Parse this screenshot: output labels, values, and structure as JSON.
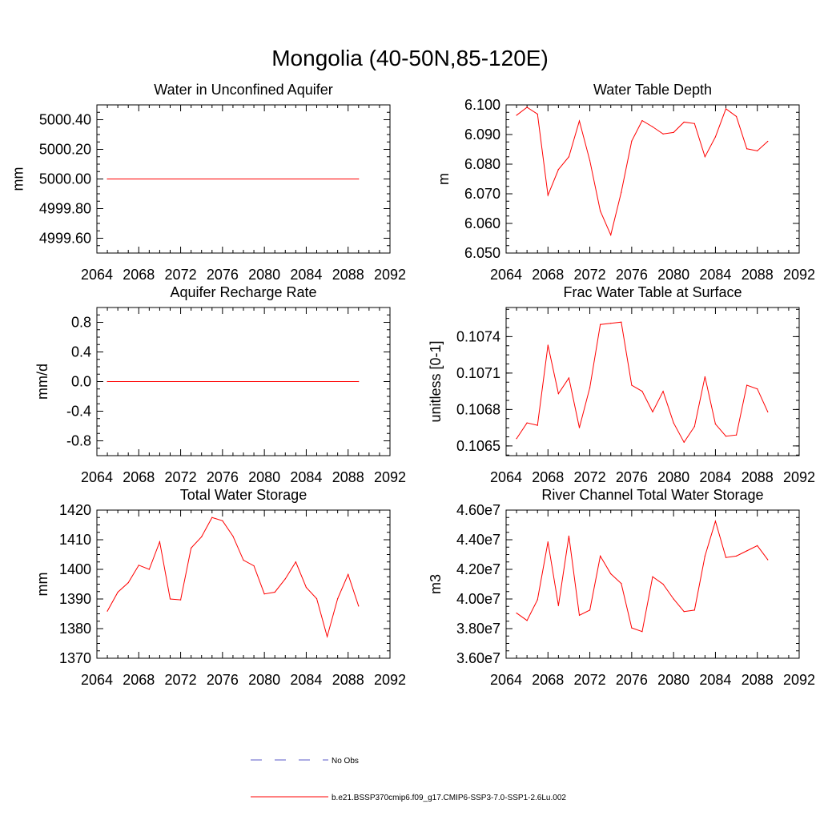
{
  "figure": {
    "title": "Mongolia (40-50N,85-120E)",
    "legend": [
      {
        "label": "No Obs",
        "color": "#5a5ac8",
        "dash": true
      },
      {
        "label": "b.e21.BSSP370cmip6.f09_g17.CMIP6-SSP3-7.0-SSP1-2.6Lu.002",
        "color": "#ff0000",
        "dash": false
      }
    ]
  },
  "chart_data": [
    {
      "type": "line",
      "title": "Water in Unconfined Aquifer",
      "xlabel": "",
      "ylabel": "mm",
      "xlim": [
        2064,
        2092
      ],
      "ylim": [
        4999.5,
        5000.5
      ],
      "xticks": [
        "2064",
        "2068",
        "2072",
        "2076",
        "2080",
        "2084",
        "2088",
        "2092"
      ],
      "yticks": [
        {
          "v": 4999.6,
          "label": "4999.60"
        },
        {
          "v": 4999.8,
          "label": "4999.80"
        },
        {
          "v": 5000.0,
          "label": "5000.00"
        },
        {
          "v": 5000.2,
          "label": "5000.20"
        },
        {
          "v": 5000.4,
          "label": "5000.40"
        }
      ],
      "x": [
        2065,
        2089
      ],
      "series": [
        {
          "color": "#ff0000",
          "values": [
            5000.0,
            5000.0
          ]
        }
      ]
    },
    {
      "type": "line",
      "title": "Water Table Depth",
      "xlabel": "",
      "ylabel": "m",
      "xlim": [
        2064,
        2092
      ],
      "ylim": [
        6.05,
        6.1
      ],
      "xticks": [
        "2064",
        "2068",
        "2072",
        "2076",
        "2080",
        "2084",
        "2088",
        "2092"
      ],
      "yticks": [
        {
          "v": 6.05,
          "label": "6.050"
        },
        {
          "v": 6.06,
          "label": "6.060"
        },
        {
          "v": 6.07,
          "label": "6.070"
        },
        {
          "v": 6.08,
          "label": "6.080"
        },
        {
          "v": 6.09,
          "label": "6.090"
        },
        {
          "v": 6.1,
          "label": "6.100"
        }
      ],
      "x": [
        2065,
        2066,
        2067,
        2068,
        2069,
        2070,
        2071,
        2072,
        2073,
        2074,
        2075,
        2076,
        2077,
        2078,
        2079,
        2080,
        2081,
        2082,
        2083,
        2084,
        2085,
        2086,
        2087,
        2088,
        2089
      ],
      "series": [
        {
          "color": "#ff0000",
          "values": [
            6.0965,
            6.0992,
            6.0969,
            6.0695,
            6.0782,
            6.0825,
            6.0946,
            6.0812,
            6.0642,
            6.0561,
            6.0705,
            6.0878,
            6.0947,
            6.0926,
            6.0902,
            6.0907,
            6.0942,
            6.0937,
            6.0825,
            6.0892,
            6.0987,
            6.0961,
            6.0852,
            6.0845,
            6.0877
          ]
        }
      ]
    },
    {
      "type": "line",
      "title": "Aquifer Recharge Rate",
      "xlabel": "",
      "ylabel": "mm/d",
      "xlim": [
        2064,
        2092
      ],
      "ylim": [
        -1.0,
        1.0
      ],
      "xticks": [
        "2064",
        "2068",
        "2072",
        "2076",
        "2080",
        "2084",
        "2088",
        "2092"
      ],
      "yticks": [
        {
          "v": -0.8,
          "label": "-0.8"
        },
        {
          "v": -0.4,
          "label": "-0.4"
        },
        {
          "v": 0.0,
          "label": "0.0"
        },
        {
          "v": 0.4,
          "label": "0.4"
        },
        {
          "v": 0.8,
          "label": "0.8"
        }
      ],
      "x": [
        2065,
        2089
      ],
      "series": [
        {
          "color": "#ff0000",
          "values": [
            0.0,
            0.0
          ]
        }
      ]
    },
    {
      "type": "line",
      "title": "Frac Water Table at Surface",
      "xlabel": "",
      "ylabel": "unitless [0-1]",
      "xlim": [
        2064,
        2092
      ],
      "ylim": [
        0.10642,
        0.10764
      ],
      "xticks": [
        "2064",
        "2068",
        "2072",
        "2076",
        "2080",
        "2084",
        "2088",
        "2092"
      ],
      "yticks": [
        {
          "v": 0.1065,
          "label": "0.1065"
        },
        {
          "v": 0.1068,
          "label": "0.1068"
        },
        {
          "v": 0.1071,
          "label": "0.1071"
        },
        {
          "v": 0.1074,
          "label": "0.1074"
        }
      ],
      "x": [
        2065,
        2066,
        2067,
        2068,
        2069,
        2070,
        2071,
        2072,
        2073,
        2074,
        2075,
        2076,
        2077,
        2078,
        2079,
        2080,
        2081,
        2082,
        2083,
        2084,
        2085,
        2086,
        2087,
        2088,
        2089
      ],
      "series": [
        {
          "color": "#ff0000",
          "values": [
            0.10656,
            0.10669,
            0.10667,
            0.10733,
            0.10693,
            0.10706,
            0.10665,
            0.10698,
            0.1075,
            0.10751,
            0.10752,
            0.107,
            0.10695,
            0.10678,
            0.10695,
            0.10669,
            0.10653,
            0.10666,
            0.10707,
            0.10668,
            0.10658,
            0.10659,
            0.107,
            0.10697,
            0.10678
          ]
        }
      ]
    },
    {
      "type": "line",
      "title": "Total Water Storage",
      "xlabel": "",
      "ylabel": "mm",
      "xlim": [
        2064,
        2092
      ],
      "ylim": [
        1370,
        1420
      ],
      "xticks": [
        "2064",
        "2068",
        "2072",
        "2076",
        "2080",
        "2084",
        "2088",
        "2092"
      ],
      "yticks": [
        {
          "v": 1370,
          "label": "1370"
        },
        {
          "v": 1380,
          "label": "1380"
        },
        {
          "v": 1390,
          "label": "1390"
        },
        {
          "v": 1400,
          "label": "1400"
        },
        {
          "v": 1410,
          "label": "1410"
        },
        {
          "v": 1420,
          "label": "1420"
        }
      ],
      "x": [
        2065,
        2066,
        2067,
        2068,
        2069,
        2070,
        2071,
        2072,
        2073,
        2074,
        2075,
        2076,
        2077,
        2078,
        2079,
        2080,
        2081,
        2082,
        2083,
        2084,
        2085,
        2086,
        2087,
        2088,
        2089
      ],
      "series": [
        {
          "color": "#ff0000",
          "values": [
            1385.9,
            1392.3,
            1395.5,
            1401.4,
            1400.0,
            1409.3,
            1390.0,
            1389.7,
            1407.2,
            1411.0,
            1417.5,
            1416.4,
            1411.2,
            1403.1,
            1401.2,
            1391.7,
            1392.3,
            1396.8,
            1402.5,
            1393.9,
            1390.1,
            1377.3,
            1390.1,
            1398.3,
            1387.6
          ]
        }
      ]
    },
    {
      "type": "line",
      "title": "River Channel Total Water Storage",
      "xlabel": "",
      "ylabel": "m3",
      "xlim": [
        2064,
        2092
      ],
      "ylim": [
        36000000,
        46000000
      ],
      "xticks": [
        "2064",
        "2068",
        "2072",
        "2076",
        "2080",
        "2084",
        "2088",
        "2092"
      ],
      "yticks": [
        {
          "v": 36000000,
          "label": "3.60e7"
        },
        {
          "v": 38000000,
          "label": "3.80e7"
        },
        {
          "v": 40000000,
          "label": "4.00e7"
        },
        {
          "v": 42000000,
          "label": "4.20e7"
        },
        {
          "v": 44000000,
          "label": "4.40e7"
        },
        {
          "v": 46000000,
          "label": "4.60e7"
        }
      ],
      "x": [
        2065,
        2066,
        2067,
        2068,
        2069,
        2070,
        2071,
        2072,
        2073,
        2074,
        2075,
        2076,
        2077,
        2078,
        2079,
        2080,
        2081,
        2082,
        2083,
        2084,
        2085,
        2086,
        2087,
        2088,
        2089
      ],
      "series": [
        {
          "color": "#ff0000",
          "values": [
            39050000,
            38550000,
            39950000,
            43850000,
            39550000,
            44250000,
            38900000,
            39250000,
            42900000,
            41700000,
            41050000,
            38050000,
            37800000,
            41500000,
            41000000,
            40000000,
            39150000,
            39250000,
            42900000,
            45250000,
            42800000,
            42900000,
            43250000,
            43600000,
            42650000
          ]
        }
      ]
    }
  ]
}
